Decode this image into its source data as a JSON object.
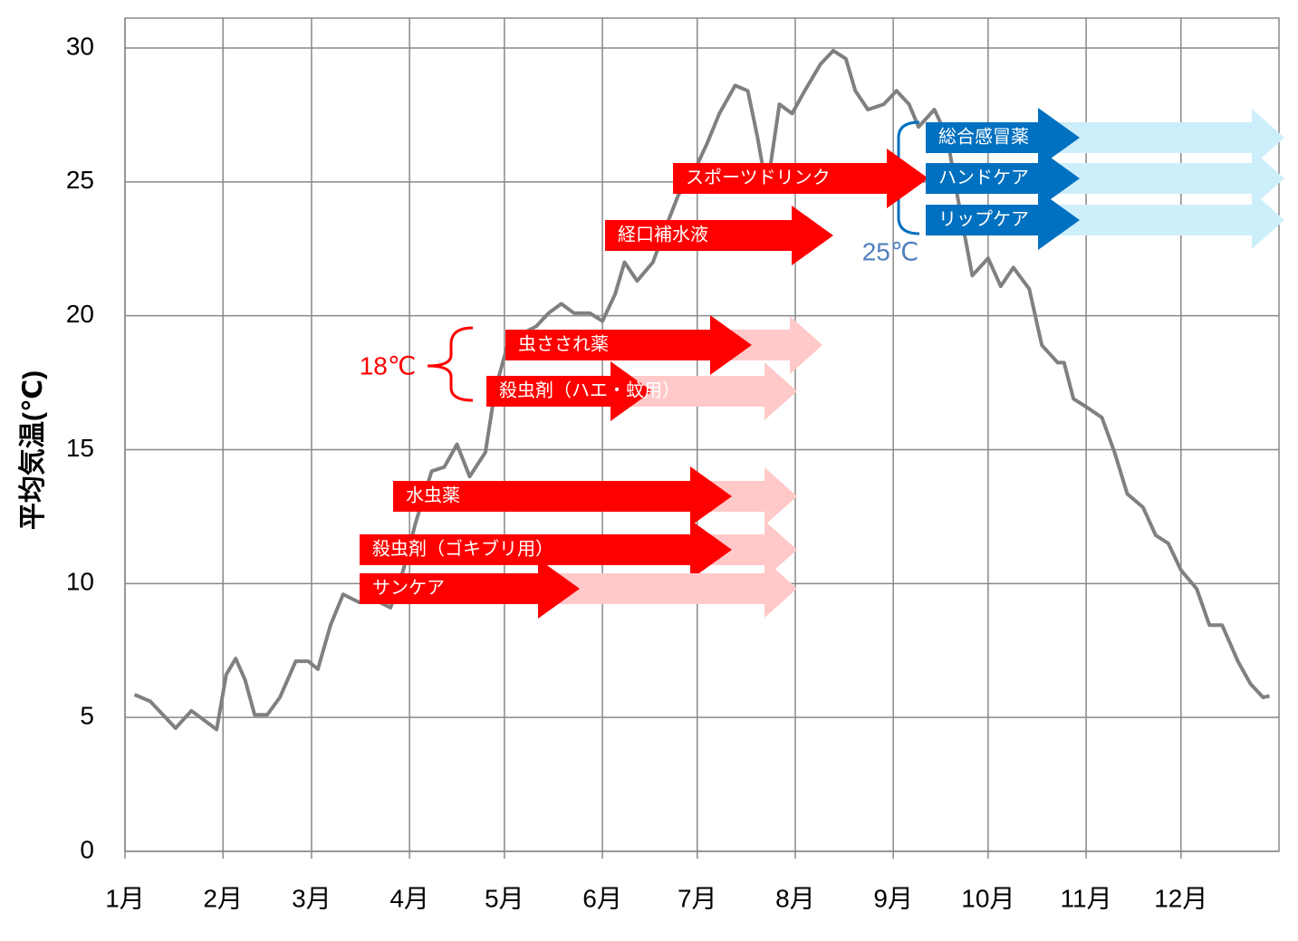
{
  "chart_data": {
    "type": "line",
    "ylabel": "平均気温(℃)",
    "color": "#808080",
    "x": [
      3,
      8,
      12,
      16,
      21,
      25,
      29,
      32,
      35,
      38,
      41,
      45,
      49,
      54,
      58,
      61,
      65,
      69,
      74,
      78,
      84,
      88,
      92,
      97,
      101,
      105,
      109,
      114,
      117,
      121,
      125,
      130,
      134,
      138,
      142,
      147,
      151,
      155,
      158,
      162,
      167,
      171,
      175,
      180,
      184,
      188,
      193,
      197,
      200,
      203,
      207,
      211,
      215,
      220,
      224,
      228,
      231,
      235,
      240,
      244,
      248,
      251,
      256,
      260,
      264,
      268,
      273,
      277,
      281,
      286,
      290,
      295,
      297,
      300,
      304,
      309,
      313,
      317,
      322,
      326,
      330,
      334,
      339,
      343,
      347,
      352,
      356,
      360,
      362
    ],
    "values": [
      5.85,
      5.6,
      5.1,
      4.6,
      5.25,
      4.9,
      4.55,
      6.6,
      7.2,
      6.4,
      5.1,
      5.1,
      5.75,
      7.1,
      7.1,
      6.8,
      8.45,
      9.6,
      9.3,
      9.45,
      9.1,
      10.5,
      12.3,
      14.2,
      14.35,
      15.2,
      14.0,
      14.9,
      17.2,
      18.9,
      19.3,
      19.6,
      20.1,
      20.45,
      20.1,
      20.1,
      19.8,
      20.8,
      22.0,
      21.3,
      22.0,
      23.3,
      24.5,
      25.4,
      26.4,
      27.55,
      28.6,
      28.4,
      26.7,
      24.7,
      27.9,
      27.55,
      28.4,
      29.4,
      29.9,
      29.6,
      28.4,
      27.7,
      27.9,
      28.4,
      27.9,
      27.05,
      27.7,
      26.7,
      24.0,
      21.5,
      22.15,
      21.1,
      21.8,
      21.0,
      18.9,
      18.25,
      18.25,
      16.9,
      16.6,
      16.2,
      14.9,
      13.35,
      12.85,
      11.8,
      11.5,
      10.5,
      9.8,
      8.45,
      8.45,
      7.1,
      6.25,
      5.75,
      5.8
    ],
    "xlim": [
      0,
      365
    ],
    "xticks": [
      {
        "value": 0,
        "label": "1月"
      },
      {
        "value": 31,
        "label": "2月"
      },
      {
        "value": 59,
        "label": "3月"
      },
      {
        "value": 90,
        "label": "4月"
      },
      {
        "value": 120,
        "label": "5月"
      },
      {
        "value": 151,
        "label": "6月"
      },
      {
        "value": 181,
        "label": "7月"
      },
      {
        "value": 212,
        "label": "8月"
      },
      {
        "value": 243,
        "label": "9月"
      },
      {
        "value": 273,
        "label": "10月"
      },
      {
        "value": 304,
        "label": "11月"
      },
      {
        "value": 334,
        "label": "12月"
      }
    ],
    "ylim": [
      0,
      30
    ],
    "yticks": [
      0,
      5,
      10,
      15,
      20,
      25,
      30
    ],
    "grid": true,
    "annotations": [
      "スポーツドリンク",
      "経口補水液",
      "虫さされ薬",
      "殺虫剤（ハエ・蚊用）",
      "水虫薬",
      "殺虫剤（ゴキブリ用）",
      "サンケア",
      "総合感冒薬",
      "ハンドケア",
      "リップケア"
    ],
    "brace_labels": [
      "18℃",
      "25℃"
    ]
  }
}
